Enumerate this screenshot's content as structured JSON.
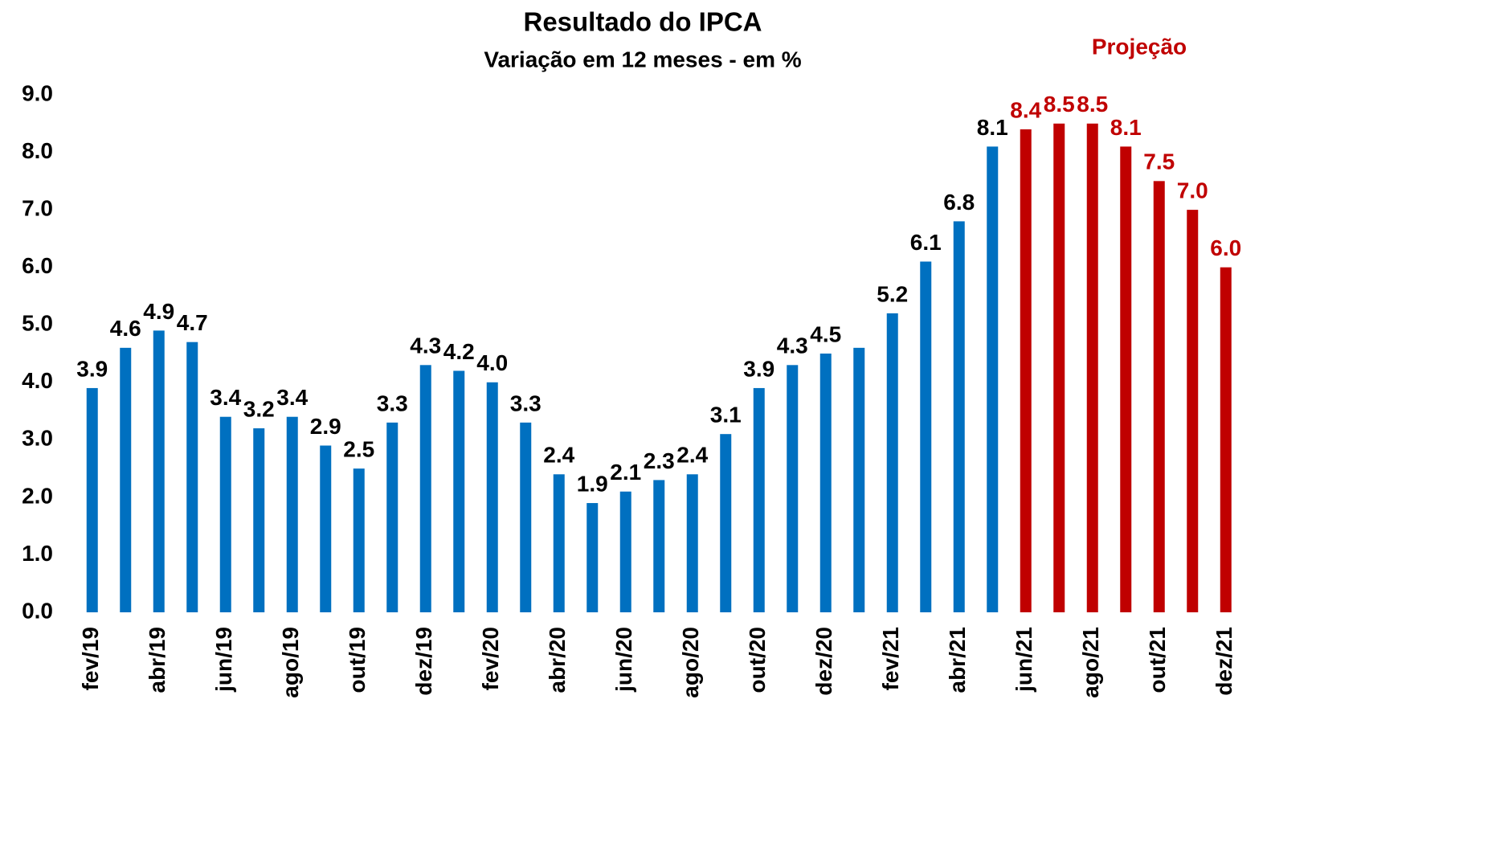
{
  "chart_data": {
    "type": "bar",
    "title": "Resultado do IPCA",
    "subtitle": "Variação em 12 meses - em %",
    "annotation": "Projeção",
    "categories": [
      "fev/19",
      null,
      "abr/19",
      null,
      "jun/19",
      null,
      "ago/19",
      null,
      "out/19",
      null,
      "dez/19",
      null,
      "fev/20",
      null,
      "abr/20",
      null,
      "jun/20",
      null,
      "ago/20",
      null,
      "out/20",
      null,
      "dez/20",
      null,
      "fev/21",
      null,
      "abr/21",
      null,
      "jun/21",
      null,
      "ago/21",
      null,
      "out/21",
      null,
      "dez/21"
    ],
    "values": [
      3.9,
      4.6,
      4.9,
      4.7,
      3.4,
      3.2,
      3.4,
      2.9,
      2.5,
      3.3,
      4.3,
      4.2,
      4.0,
      3.3,
      2.4,
      1.9,
      2.1,
      2.3,
      2.4,
      3.1,
      3.9,
      4.3,
      4.5,
      4.6,
      5.2,
      6.1,
      6.8,
      8.1,
      8.4,
      8.5,
      8.5,
      8.1,
      7.5,
      7.0,
      6.0
    ],
    "value_labels": [
      "3.9",
      "4.6",
      "4.9",
      "4.7",
      "3.4",
      "3.2",
      "3.4",
      "2.9",
      "2.5",
      "3.3",
      "4.3",
      "4.2",
      "4.0",
      "3.3",
      "2.4",
      "1.9",
      "2.1",
      "2.3",
      "2.4",
      "3.1",
      "3.9",
      "4.3",
      "4.5",
      null,
      "5.2",
      "6.1",
      "6.8",
      "8.1",
      "8.4",
      "8.5",
      "8.5",
      "8.1",
      "7.5",
      "7.0",
      "6.0"
    ],
    "colors": [
      "#0070c0",
      "#0070c0",
      "#0070c0",
      "#0070c0",
      "#0070c0",
      "#0070c0",
      "#0070c0",
      "#0070c0",
      "#0070c0",
      "#0070c0",
      "#0070c0",
      "#0070c0",
      "#0070c0",
      "#0070c0",
      "#0070c0",
      "#0070c0",
      "#0070c0",
      "#0070c0",
      "#0070c0",
      "#0070c0",
      "#0070c0",
      "#0070c0",
      "#0070c0",
      "#0070c0",
      "#0070c0",
      "#0070c0",
      "#0070c0",
      "#0070c0",
      "#c00000",
      "#c00000",
      "#c00000",
      "#c00000",
      "#c00000",
      "#c00000",
      "#c00000"
    ],
    "label_colors": [
      "#000000",
      "#000000",
      "#000000",
      "#000000",
      "#000000",
      "#000000",
      "#000000",
      "#000000",
      "#000000",
      "#000000",
      "#000000",
      "#000000",
      "#000000",
      "#000000",
      "#000000",
      "#000000",
      "#000000",
      "#000000",
      "#000000",
      "#000000",
      "#000000",
      "#000000",
      "#000000",
      "#000000",
      "#000000",
      "#000000",
      "#000000",
      "#000000",
      "#c00000",
      "#c00000",
      "#c00000",
      "#c00000",
      "#c00000",
      "#c00000",
      "#c00000"
    ],
    "ylim": [
      0,
      9
    ],
    "yticks": [
      {
        "value": 0,
        "label": "0.0"
      },
      {
        "value": 1,
        "label": "1.0"
      },
      {
        "value": 2,
        "label": "2.0"
      },
      {
        "value": 3,
        "label": "3.0"
      },
      {
        "value": 4,
        "label": "4.0"
      },
      {
        "value": 5,
        "label": "5.0"
      },
      {
        "value": 6,
        "label": "6.0"
      },
      {
        "value": 7,
        "label": "7.0"
      },
      {
        "value": 8,
        "label": "8.0"
      },
      {
        "value": 9,
        "label": "9.0"
      }
    ],
    "grid": false
  }
}
